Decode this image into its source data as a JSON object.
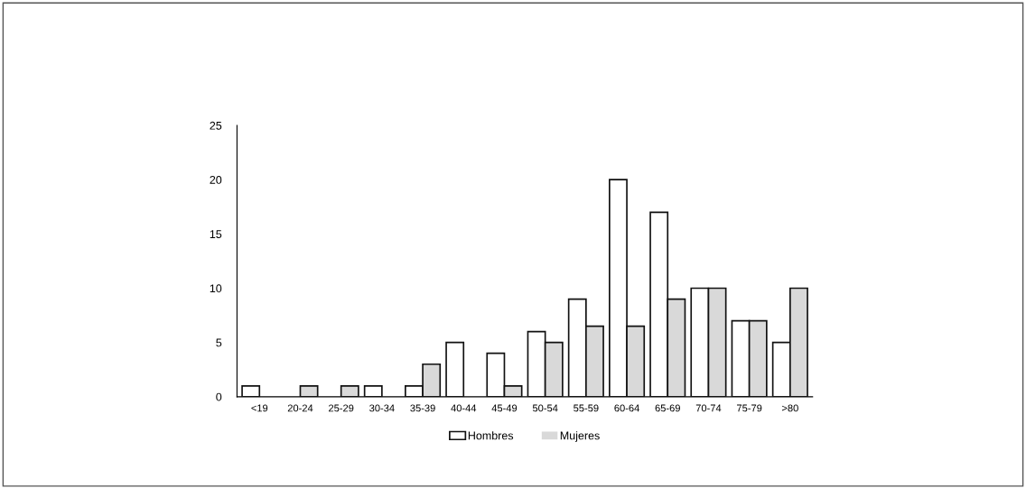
{
  "chart_data": {
    "type": "bar",
    "categories": [
      "<19",
      "20-24",
      "25-29",
      "30-34",
      "35-39",
      "40-44",
      "45-49",
      "50-54",
      "55-59",
      "60-64",
      "65-69",
      "70-74",
      "75-79",
      ">80"
    ],
    "series": [
      {
        "name": "Hombres",
        "color": "#ffffff",
        "values": [
          1,
          0,
          0,
          1,
          1,
          5,
          4,
          6,
          9,
          20,
          17,
          10,
          7,
          5
        ]
      },
      {
        "name": "Mujeres",
        "color": "#d9d9d9",
        "values": [
          0,
          1,
          1,
          0,
          3,
          0,
          1,
          5,
          6.5,
          6.5,
          9,
          10,
          7,
          10
        ]
      }
    ],
    "ylim": [
      0,
      25
    ],
    "yticks": [
      0,
      5,
      10,
      15,
      20,
      25
    ],
    "grid": false,
    "legend": "bottom"
  }
}
